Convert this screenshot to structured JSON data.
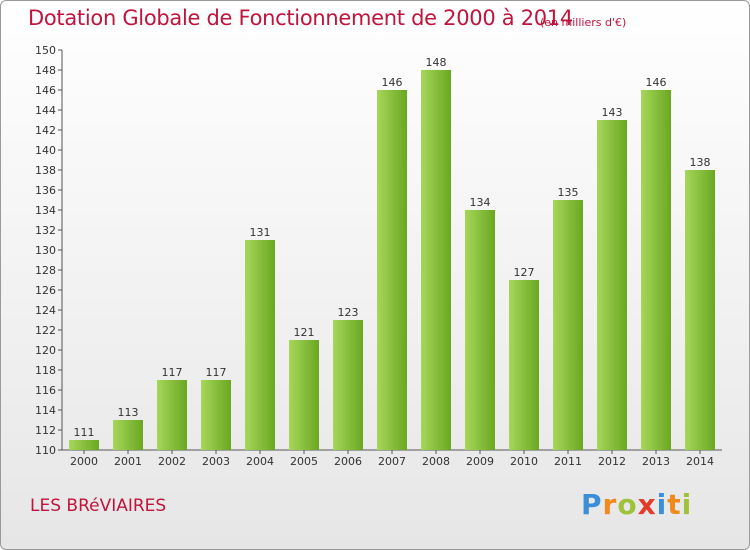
{
  "title": "Dotation Globale de Fonctionnement de 2000 à 2014",
  "subtitle": "(en milliers d'€)",
  "commune": "LES BRéVIAIRES",
  "logo": {
    "letters": [
      "P",
      "r",
      "o",
      "x",
      "i",
      "t",
      "i"
    ],
    "colors": [
      "#3a8fd8",
      "#f08a1c",
      "#9ec23a",
      "#e43c2c",
      "#3a8fd8",
      "#f08a1c",
      "#9ec23a"
    ]
  },
  "colors": {
    "title": "#c0143c",
    "bar_light": "#a6d65a",
    "bar_dark": "#6aa821"
  },
  "chart_data": {
    "type": "bar",
    "categories": [
      "2000",
      "2001",
      "2002",
      "2003",
      "2004",
      "2005",
      "2006",
      "2007",
      "2008",
      "2009",
      "2010",
      "2011",
      "2012",
      "2013",
      "2014"
    ],
    "values": [
      111,
      113,
      117,
      117,
      131,
      121,
      123,
      146,
      148,
      134,
      127,
      135,
      143,
      146,
      138
    ],
    "title": "Dotation Globale de Fonctionnement de 2000 à 2014",
    "ylim": [
      110,
      150
    ],
    "ytick_step": 2,
    "grid": false,
    "legend": "none"
  }
}
